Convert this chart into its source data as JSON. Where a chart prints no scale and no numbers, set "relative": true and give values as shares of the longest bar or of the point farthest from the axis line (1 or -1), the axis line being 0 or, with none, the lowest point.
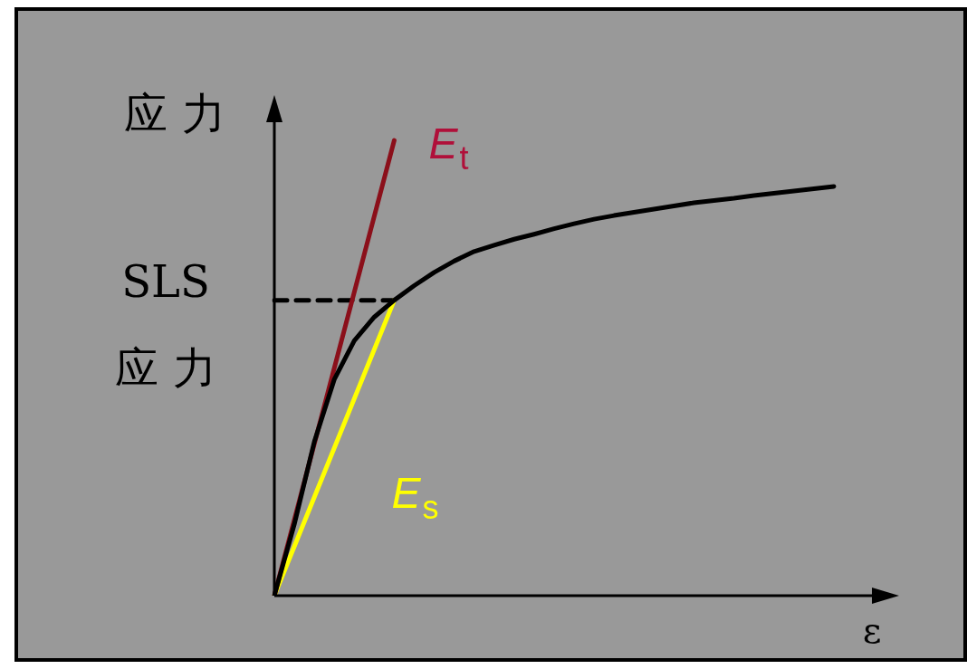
{
  "chart_data": {
    "type": "line",
    "relative": true,
    "ylabel": "应力",
    "xlabel": "ε",
    "marker": "none",
    "legend": false,
    "line_style": "solid",
    "annotations": [
      "SLS 应力"
    ],
    "categories": [
      null,
      null,
      null,
      null,
      null,
      null,
      null,
      null,
      null,
      null,
      null,
      null,
      null,
      null,
      null,
      null,
      null,
      null,
      null,
      null,
      null,
      null,
      null,
      null,
      null,
      null,
      null,
      null,
      null,
      null
    ],
    "series": [
      {
        "color": "#000000",
        "values": [
          0,
          0.157,
          0.338,
          0.475,
          0.56,
          0.612,
          0.649,
          0.681,
          0.71,
          0.735,
          0.756,
          0.77,
          0.783,
          0.794,
          0.806,
          0.817,
          0.827,
          0.835,
          0.842,
          0.849,
          0.856,
          0.863,
          0.868,
          0.873,
          0.879,
          0.884,
          0.889,
          0.894,
          0.899,
          null
        ]
      },
      {
        "name": "E$_{t}$",
        "color": "#8b0f1a",
        "values": [
          0,
          null,
          null,
          null,
          null,
          null,
          1,
          null,
          null,
          null,
          null,
          null,
          null,
          null,
          null,
          null,
          null,
          null,
          null,
          null,
          null,
          null,
          null,
          null,
          null,
          null,
          null,
          null,
          null,
          null
        ]
      },
      {
        "name": "E$_{s}$",
        "color": "#ffff00",
        "values": [
          0,
          null,
          null,
          null,
          null,
          null,
          0.649,
          null,
          null,
          null,
          null,
          null,
          null,
          null,
          null,
          null,
          null,
          null,
          null,
          null,
          null,
          null,
          null,
          null,
          null,
          null,
          null,
          null,
          null,
          null
        ]
      },
      {
        "color": "#000000",
        "line_style": "dashed",
        "values": [
          0.649,
          null,
          null,
          null,
          null,
          null,
          0.649,
          null,
          null,
          null,
          null,
          null,
          null,
          null,
          null,
          null,
          null,
          null,
          null,
          null,
          null,
          null,
          null,
          null,
          null,
          null,
          null,
          null,
          null,
          null
        ]
      }
    ]
  }
}
